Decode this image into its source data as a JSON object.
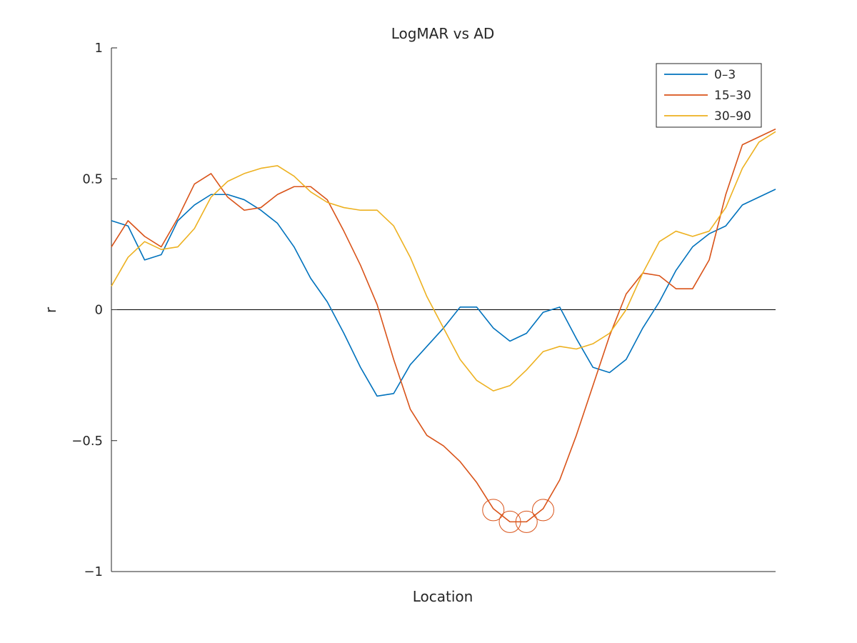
{
  "chart_data": {
    "type": "line",
    "title": "LogMAR vs AD",
    "xlabel": "Location",
    "ylabel": "r",
    "ylim": [
      -1,
      1
    ],
    "yticks": [
      {
        "value": 1,
        "label": "1"
      },
      {
        "value": 0.5,
        "label": "0.5"
      },
      {
        "value": 0,
        "label": "0"
      },
      {
        "value": -0.5,
        "label": "-0.5"
      },
      {
        "value": -1,
        "label": "-1"
      }
    ],
    "xlim": [
      1,
      41
    ],
    "x_ticks_shown": false,
    "grid": false,
    "zero_line": true,
    "legend_position": "top-right",
    "series": [
      {
        "name": "0-3",
        "color": "#0072BD",
        "values": [
          0.34,
          0.32,
          0.19,
          0.21,
          0.34,
          0.4,
          0.44,
          0.44,
          0.42,
          0.38,
          0.33,
          0.24,
          0.12,
          0.03,
          -0.09,
          -0.22,
          -0.33,
          -0.32,
          -0.21,
          -0.14,
          -0.07,
          0.01,
          0.01,
          -0.07,
          -0.12,
          -0.09,
          -0.01,
          0.01,
          -0.11,
          -0.22,
          -0.24,
          -0.19,
          -0.07,
          0.03,
          0.15,
          0.24,
          0.29,
          0.32,
          0.4,
          0.43,
          0.46
        ]
      },
      {
        "name": "15-30",
        "color": "#D95319",
        "values": [
          0.24,
          0.34,
          0.28,
          0.24,
          0.35,
          0.48,
          0.52,
          0.43,
          0.38,
          0.39,
          0.44,
          0.47,
          0.47,
          0.42,
          0.3,
          0.17,
          0.02,
          -0.19,
          -0.38,
          -0.48,
          -0.52,
          -0.58,
          -0.66,
          -0.76,
          -0.81,
          -0.81,
          -0.76,
          -0.65,
          -0.48,
          -0.29,
          -0.1,
          0.06,
          0.14,
          0.13,
          0.08,
          0.08,
          0.19,
          0.44,
          0.63,
          0.66,
          0.69
        ],
        "highlighted_points": [
          {
            "x": 24,
            "y": -0.765
          },
          {
            "x": 25,
            "y": -0.81
          },
          {
            "x": 26,
            "y": -0.81
          },
          {
            "x": 27,
            "y": -0.765
          }
        ]
      },
      {
        "name": "30-90",
        "color": "#EDB120",
        "values": [
          0.09,
          0.2,
          0.26,
          0.23,
          0.24,
          0.31,
          0.43,
          0.49,
          0.52,
          0.54,
          0.55,
          0.51,
          0.45,
          0.41,
          0.39,
          0.38,
          0.38,
          0.32,
          0.2,
          0.05,
          -0.07,
          -0.19,
          -0.27,
          -0.31,
          -0.29,
          -0.23,
          -0.16,
          -0.14,
          -0.15,
          -0.13,
          -0.09,
          0.0,
          0.14,
          0.26,
          0.3,
          0.28,
          0.3,
          0.39,
          0.54,
          0.64,
          0.68
        ]
      }
    ]
  }
}
